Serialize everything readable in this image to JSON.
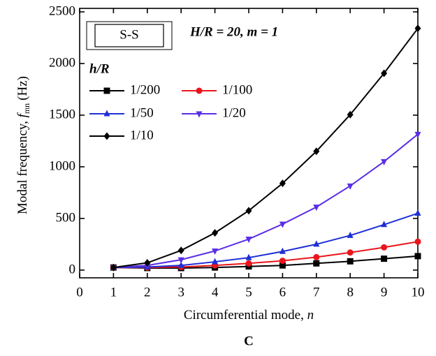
{
  "chart_data": {
    "type": "line",
    "annotation": "H/R = 20, m = 1",
    "boundary_label": "S-S",
    "legend_title": "h/R",
    "xlabel": {
      "text": "Circumferential mode, ",
      "var": "n"
    },
    "ylabel": {
      "text": "Modal frequency, ",
      "var": "f",
      "sub": "mn",
      "unit": "(Hz)"
    },
    "caption": "C",
    "x": [
      1,
      2,
      3,
      4,
      5,
      6,
      7,
      8,
      9,
      10
    ],
    "xlim": [
      0,
      10
    ],
    "xticks": [
      0,
      1,
      2,
      3,
      4,
      5,
      6,
      7,
      8,
      9,
      10
    ],
    "ylim": [
      -75,
      2500
    ],
    "yticks": [
      0,
      500,
      1000,
      1500,
      2000,
      2500
    ],
    "series": [
      {
        "name": "1/200",
        "color": "#000000",
        "marker": "square",
        "values": [
          25,
          20,
          20,
          25,
          35,
          45,
          65,
          85,
          110,
          135
        ]
      },
      {
        "name": "1/100",
        "color": "#e8161b",
        "marker": "circle",
        "values": [
          25,
          25,
          30,
          45,
          65,
          90,
          125,
          170,
          220,
          275
        ]
      },
      {
        "name": "1/50",
        "color": "#1f2fd6",
        "marker": "triangle-up",
        "values": [
          25,
          30,
          45,
          80,
          120,
          180,
          250,
          335,
          440,
          550
        ]
      },
      {
        "name": "1/20",
        "color": "#5a2ee6",
        "marker": "triangle-down",
        "values": [
          25,
          45,
          100,
          185,
          300,
          445,
          610,
          815,
          1050,
          1315
        ]
      },
      {
        "name": "1/10",
        "color": "#000000",
        "marker": "diamond",
        "values": [
          25,
          70,
          190,
          360,
          575,
          840,
          1150,
          1505,
          1905,
          2340
        ]
      }
    ]
  }
}
